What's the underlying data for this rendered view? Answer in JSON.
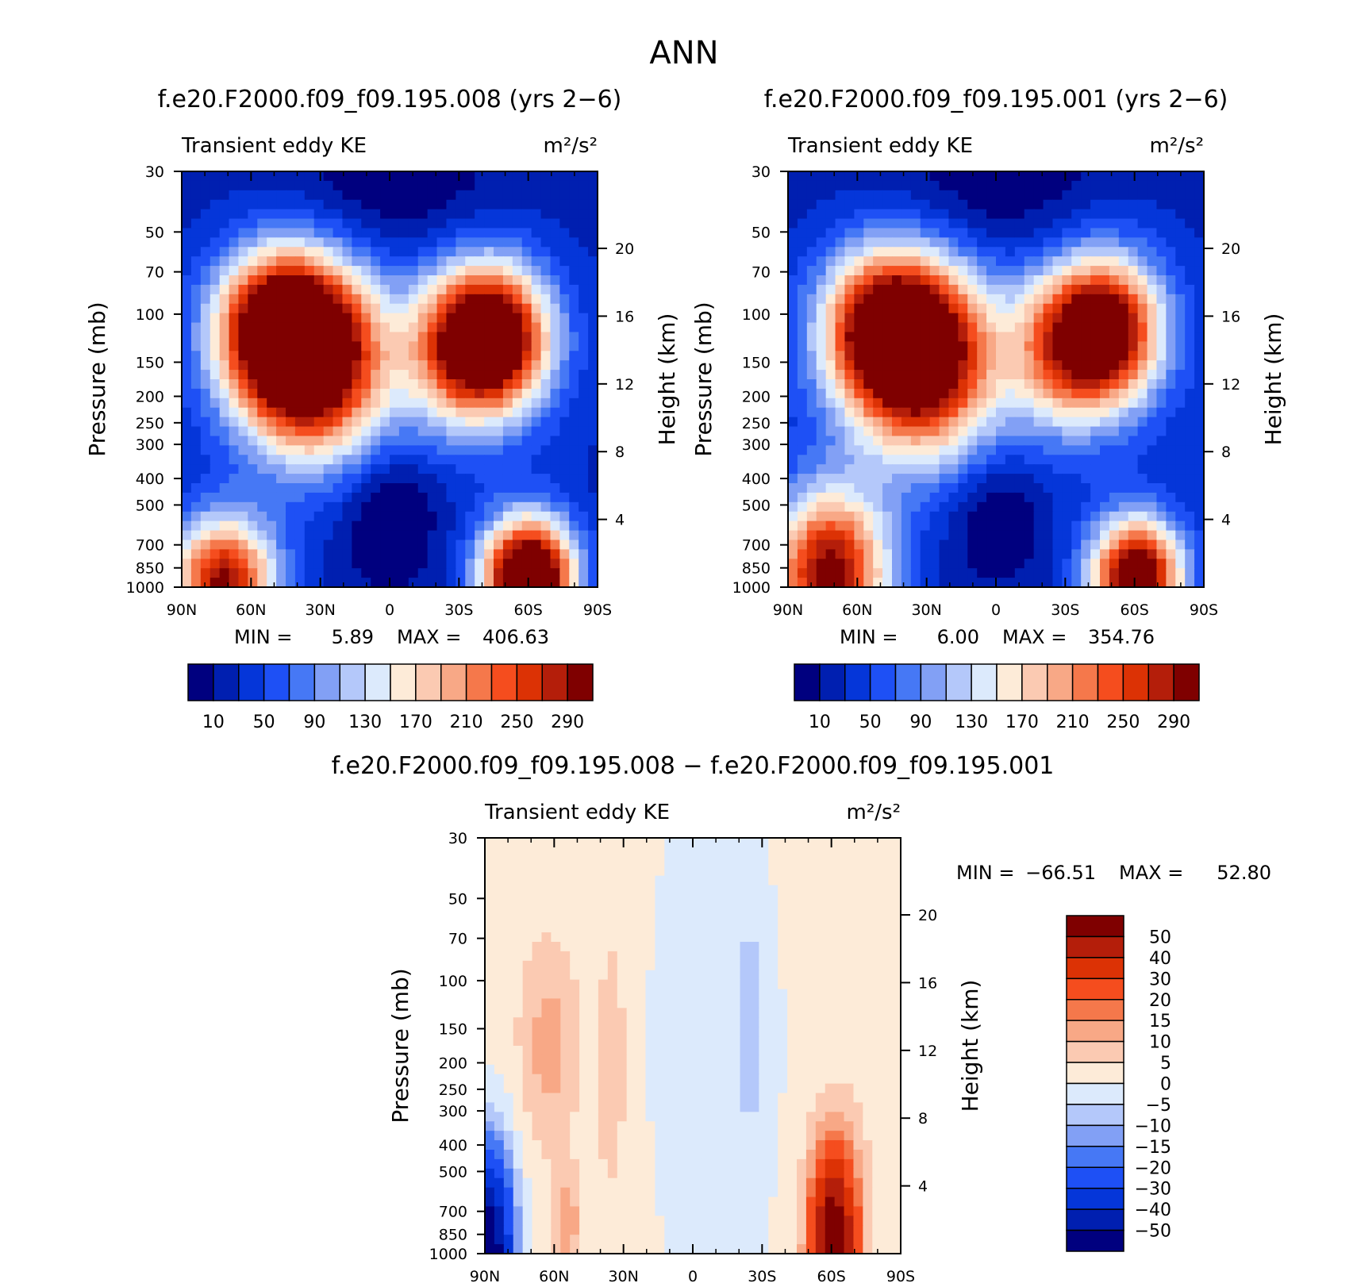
{
  "title": "ANN",
  "palette": {
    "abs": [
      "#00007f",
      "#001fb0",
      "#0536d9",
      "#1e50f5",
      "#4678f5",
      "#82a0f5",
      "#b4c8fa",
      "#dceafc",
      "#fdebd8",
      "#fbcab2",
      "#f8a886",
      "#f5784b",
      "#f54d1e",
      "#dc3205",
      "#b41e0a",
      "#7f0000"
    ],
    "diff": [
      "#00007f",
      "#001fb0",
      "#0536d9",
      "#1e50f5",
      "#4678f5",
      "#82a0f5",
      "#b4c8fa",
      "#dceafc",
      "#fdebd8",
      "#fbcab2",
      "#f8a886",
      "#f5784b",
      "#f54d1e",
      "#dc3205",
      "#b41e0a",
      "#7f0000"
    ]
  },
  "chart_data": [
    {
      "type": "contour",
      "title": "f.e20.F2000.f09_f09.195.008 (yrs 2−6)",
      "left_label": "Transient eddy KE",
      "right_label": "m²/s²",
      "xlabel": "",
      "ylabel": "Pressure (mb)",
      "ylabel_right": "Height (km)",
      "x_ticks": [
        "90N",
        "60N",
        "30N",
        "0",
        "30S",
        "60S",
        "90S"
      ],
      "y_ticks": [
        "30",
        "50",
        "70",
        "100",
        "150",
        "200",
        "250",
        "300",
        "400",
        "500",
        "700",
        "850",
        "1000"
      ],
      "height_ticks": [
        "20",
        "16",
        "12",
        "8",
        "4"
      ],
      "min_label": "MIN =",
      "min_value": "5.89",
      "max_label": "MAX =",
      "max_value": "406.63",
      "levels": [
        10,
        30,
        50,
        70,
        90,
        110,
        130,
        150,
        170,
        190,
        210,
        230,
        250,
        270,
        290
      ],
      "colorbar_labels": [
        "10",
        "50",
        "90",
        "130",
        "170",
        "210",
        "250",
        "290"
      ]
    },
    {
      "type": "contour",
      "title": "f.e20.F2000.f09_f09.195.001 (yrs 2−6)",
      "left_label": "Transient eddy KE",
      "right_label": "m²/s²",
      "xlabel": "",
      "ylabel": "Pressure (mb)",
      "ylabel_right": "Height (km)",
      "x_ticks": [
        "90N",
        "60N",
        "30N",
        "0",
        "30S",
        "60S",
        "90S"
      ],
      "y_ticks": [
        "30",
        "50",
        "70",
        "100",
        "150",
        "200",
        "250",
        "300",
        "400",
        "500",
        "700",
        "850",
        "1000"
      ],
      "height_ticks": [
        "20",
        "16",
        "12",
        "8",
        "4"
      ],
      "min_label": "MIN =",
      "min_value": "6.00",
      "max_label": "MAX =",
      "max_value": "354.76",
      "levels": [
        10,
        30,
        50,
        70,
        90,
        110,
        130,
        150,
        170,
        190,
        210,
        230,
        250,
        270,
        290
      ],
      "colorbar_labels": [
        "10",
        "50",
        "90",
        "130",
        "170",
        "210",
        "250",
        "290"
      ]
    },
    {
      "type": "contour",
      "title": "f.e20.F2000.f09_f09.195.008 − f.e20.F2000.f09_f09.195.001",
      "left_label": "Transient eddy KE",
      "right_label": "m²/s²",
      "xlabel": "",
      "ylabel": "Pressure (mb)",
      "ylabel_right": "Height (km)",
      "x_ticks": [
        "90N",
        "60N",
        "30N",
        "0",
        "30S",
        "60S",
        "90S"
      ],
      "y_ticks": [
        "30",
        "50",
        "70",
        "100",
        "150",
        "200",
        "250",
        "300",
        "400",
        "500",
        "700",
        "850",
        "1000"
      ],
      "height_ticks": [
        "20",
        "16",
        "12",
        "8",
        "4"
      ],
      "min_label": "MIN =",
      "min_value": "−66.51",
      "max_label": "MAX =",
      "max_value": "52.80",
      "levels": [
        -50,
        -40,
        -30,
        -20,
        -15,
        -10,
        -5,
        0,
        5,
        10,
        15,
        20,
        30,
        40,
        50
      ],
      "colorbar_labels": [
        "50",
        "40",
        "30",
        "20",
        "15",
        "10",
        "5",
        "0",
        "−5",
        "−10",
        "−15",
        "−20",
        "−30",
        "−40",
        "−50"
      ]
    }
  ]
}
